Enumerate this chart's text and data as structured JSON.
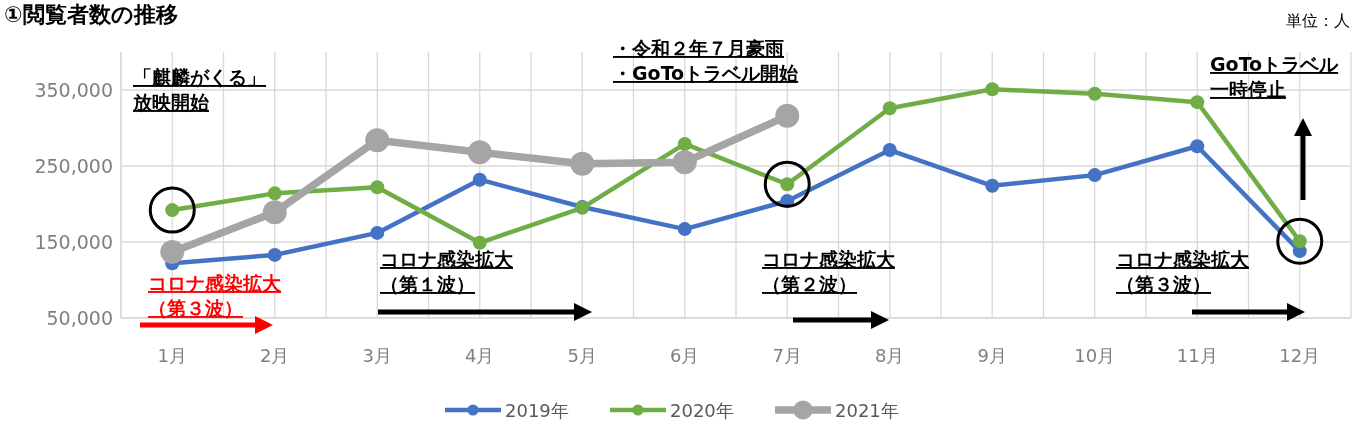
{
  "chart_data": {
    "type": "line",
    "title": "①閲覧者数の推移",
    "categories": [
      "1月",
      "2月",
      "3月",
      "4月",
      "5月",
      "6月",
      "7月",
      "8月",
      "9月",
      "10月",
      "11月",
      "12月"
    ],
    "series": [
      {
        "name": "2019年",
        "color": "#4472c4",
        "values": [
          122000,
          133000,
          162000,
          232000,
          196000,
          167000,
          204000,
          271000,
          224000,
          238000,
          276000,
          138000
        ]
      },
      {
        "name": "2020年",
        "color": "#70ad47",
        "values": [
          192000,
          214000,
          222000,
          149000,
          195000,
          279000,
          226000,
          326000,
          351000,
          345000,
          334000,
          151000
        ]
      },
      {
        "name": "2021年",
        "color": "#a5a5a5",
        "values": [
          137000,
          189000,
          284000,
          268000,
          253000,
          255000,
          316000,
          null,
          null,
          null,
          null,
          null
        ]
      }
    ],
    "ylim": [
      50000,
      400000
    ],
    "yticks": [
      {
        "value": 50000,
        "label": "50,000"
      },
      {
        "value": 150000,
        "label": "150,000"
      },
      {
        "value": 250000,
        "label": "250,000"
      },
      {
        "value": 350000,
        "label": "350,000"
      }
    ],
    "grid": true,
    "legend": "bottom",
    "marker": "circle",
    "line_style": "solid",
    "annotations": [
      "「麒麟がくる」放映開始",
      "・令和２年７月豪雨・GoToトラベル開始",
      "GoToトラベル一時停止",
      "コロナ感染拡大（第３波）",
      "コロナ感染拡大（第１波）",
      "コロナ感染拡大（第２波）",
      "コロナ感染拡大（第３波）",
      "単位：人"
    ]
  }
}
